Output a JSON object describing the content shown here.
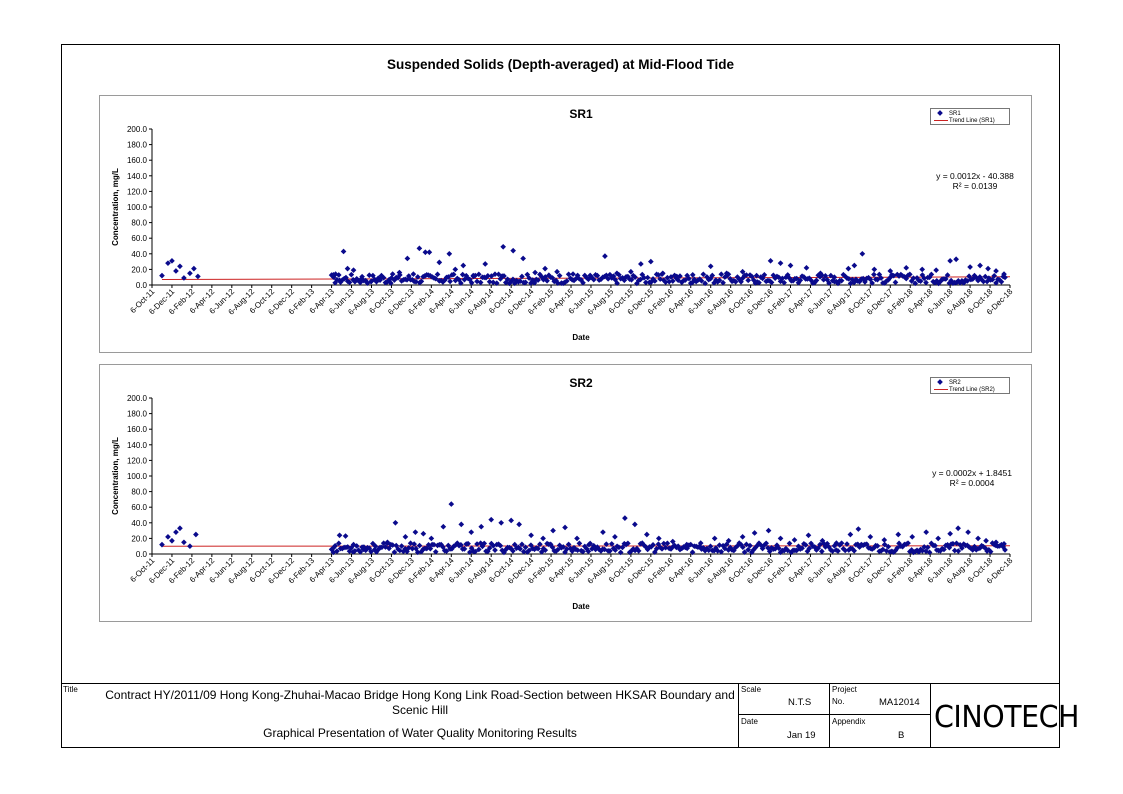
{
  "page_title": "Suspended Solids (Depth-averaged) at Mid-Flood Tide",
  "chart_data": [
    {
      "type": "scatter",
      "title": "SR1",
      "xlabel": "Date",
      "ylabel": "Concentration, mg/L",
      "ylim": [
        0,
        200
      ],
      "yticks": [
        "200.0",
        "180.0",
        "160.0",
        "140.0",
        "120.0",
        "100.0",
        "80.0",
        "60.0",
        "40.0",
        "20.0",
        "0.0"
      ],
      "xticks": [
        "6-Oct-11",
        "6-Dec-11",
        "6-Feb-12",
        "6-Apr-12",
        "6-Jun-12",
        "6-Aug-12",
        "6-Oct-12",
        "6-Dec-12",
        "6-Feb-13",
        "6-Apr-13",
        "6-Jun-13",
        "6-Aug-13",
        "6-Oct-13",
        "6-Dec-13",
        "6-Feb-14",
        "6-Apr-14",
        "6-Jun-14",
        "6-Aug-14",
        "6-Oct-14",
        "6-Dec-14",
        "6-Feb-15",
        "6-Apr-15",
        "6-Jun-15",
        "6-Aug-15",
        "6-Oct-15",
        "6-Dec-15",
        "6-Feb-16",
        "6-Apr-16",
        "6-Jun-16",
        "6-Aug-16",
        "6-Oct-16",
        "6-Dec-16",
        "6-Feb-17",
        "6-Apr-17",
        "6-Jun-17",
        "6-Aug-17",
        "6-Oct-17",
        "6-Dec-17",
        "6-Feb-18",
        "6-Apr-18",
        "6-Jun-18",
        "6-Aug-18",
        "6-Oct-18",
        "6-Dec-18"
      ],
      "legend": [
        "SR1",
        "Trend Line (SR1)"
      ],
      "legend_position": "top-right",
      "trend_equation": "y = 0.0012x - 40.388",
      "r_squared": "R² = 0.0139",
      "trend_line": {
        "start_y": 7.0,
        "end_y": 10.5
      },
      "series": [
        {
          "name": "SR1",
          "color": "#0a0a8c",
          "points": [
            [
              0.5,
              12
            ],
            [
              0.8,
              28
            ],
            [
              1.0,
              31
            ],
            [
              1.2,
              18
            ],
            [
              1.4,
              24
            ],
            [
              1.6,
              9
            ],
            [
              1.9,
              15
            ],
            [
              2.1,
              21
            ],
            [
              2.3,
              11
            ],
            [
              9.1,
              10
            ],
            [
              9.2,
              14
            ],
            [
              9.4,
              6
            ],
            [
              9.6,
              43
            ],
            [
              9.8,
              21
            ],
            [
              10.1,
              19
            ],
            [
              10.5,
              8
            ],
            [
              11.0,
              5
            ],
            [
              11.5,
              12
            ],
            [
              12.0,
              9
            ],
            [
              12.4,
              16
            ],
            [
              12.8,
              34
            ],
            [
              13.1,
              14
            ],
            [
              13.4,
              47
            ],
            [
              13.7,
              42
            ],
            [
              13.9,
              42
            ],
            [
              14.4,
              29
            ],
            [
              14.9,
              40
            ],
            [
              15.2,
              20
            ],
            [
              15.6,
              25
            ],
            [
              16.1,
              12
            ],
            [
              16.7,
              27
            ],
            [
              17.6,
              49
            ],
            [
              18.1,
              44
            ],
            [
              18.6,
              34
            ],
            [
              19.2,
              16
            ],
            [
              19.7,
              21
            ],
            [
              20.3,
              17
            ],
            [
              21.1,
              14
            ],
            [
              22.0,
              10
            ],
            [
              22.7,
              37
            ],
            [
              23.3,
              15
            ],
            [
              24.0,
              17
            ],
            [
              24.5,
              27
            ],
            [
              25.0,
              30
            ],
            [
              25.6,
              15
            ],
            [
              26.3,
              11
            ],
            [
              27.1,
              13
            ],
            [
              28.0,
              24
            ],
            [
              28.8,
              15
            ],
            [
              29.6,
              17
            ],
            [
              30.3,
              12
            ],
            [
              31.0,
              31
            ],
            [
              31.5,
              28
            ],
            [
              32.0,
              25
            ],
            [
              32.8,
              22
            ],
            [
              33.5,
              15
            ],
            [
              34.2,
              10
            ],
            [
              34.9,
              21
            ],
            [
              35.2,
              25
            ],
            [
              35.6,
              40
            ],
            [
              36.2,
              20
            ],
            [
              37.0,
              18
            ],
            [
              37.8,
              22
            ],
            [
              38.6,
              20
            ],
            [
              39.3,
              19
            ],
            [
              40.0,
              31
            ],
            [
              40.3,
              33
            ],
            [
              41.0,
              23
            ],
            [
              41.5,
              25
            ],
            [
              41.9,
              21
            ],
            [
              42.3,
              18
            ],
            [
              42.7,
              14
            ]
          ]
        }
      ]
    },
    {
      "type": "scatter",
      "title": "SR2",
      "xlabel": "Date",
      "ylabel": "Concentration, mg/L",
      "ylim": [
        0,
        200
      ],
      "yticks": [
        "200.0",
        "180.0",
        "160.0",
        "140.0",
        "120.0",
        "100.0",
        "80.0",
        "60.0",
        "40.0",
        "20.0",
        "0.0"
      ],
      "xticks": [
        "6-Oct-11",
        "6-Dec-11",
        "6-Feb-12",
        "6-Apr-12",
        "6-Jun-12",
        "6-Aug-12",
        "6-Oct-12",
        "6-Dec-12",
        "6-Feb-13",
        "6-Apr-13",
        "6-Jun-13",
        "6-Aug-13",
        "6-Oct-13",
        "6-Dec-13",
        "6-Feb-14",
        "6-Apr-14",
        "6-Jun-14",
        "6-Aug-14",
        "6-Oct-14",
        "6-Dec-14",
        "6-Feb-15",
        "6-Apr-15",
        "6-Jun-15",
        "6-Aug-15",
        "6-Oct-15",
        "6-Dec-15",
        "6-Feb-16",
        "6-Apr-16",
        "6-Jun-16",
        "6-Aug-16",
        "6-Oct-16",
        "6-Dec-16",
        "6-Feb-17",
        "6-Apr-17",
        "6-Jun-17",
        "6-Aug-17",
        "6-Oct-17",
        "6-Dec-17",
        "6-Feb-18",
        "6-Apr-18",
        "6-Jun-18",
        "6-Aug-18",
        "6-Oct-18",
        "6-Dec-18"
      ],
      "legend": [
        "SR2",
        "Trend Line (SR2)"
      ],
      "legend_position": "top-right",
      "trend_equation": "y = 0.0002x + 1.8451",
      "r_squared": "R² = 0.0004",
      "trend_line": {
        "start_y": 10.0,
        "end_y": 10.5
      },
      "series": [
        {
          "name": "SR2",
          "color": "#0a0a8c",
          "points": [
            [
              0.5,
              12
            ],
            [
              0.8,
              22
            ],
            [
              1.0,
              17
            ],
            [
              1.2,
              28
            ],
            [
              1.4,
              33
            ],
            [
              1.6,
              15
            ],
            [
              1.9,
              10
            ],
            [
              2.2,
              25
            ],
            [
              9.1,
              8
            ],
            [
              9.4,
              24
            ],
            [
              9.7,
              23
            ],
            [
              10.1,
              12
            ],
            [
              10.6,
              6
            ],
            [
              11.2,
              10
            ],
            [
              11.8,
              15
            ],
            [
              12.2,
              40
            ],
            [
              12.7,
              22
            ],
            [
              13.2,
              28
            ],
            [
              13.6,
              26
            ],
            [
              14.0,
              20
            ],
            [
              14.6,
              35
            ],
            [
              15.0,
              64
            ],
            [
              15.5,
              38
            ],
            [
              16.0,
              28
            ],
            [
              16.5,
              35
            ],
            [
              17.0,
              44
            ],
            [
              17.5,
              40
            ],
            [
              18.0,
              43
            ],
            [
              18.4,
              38
            ],
            [
              19.0,
              24
            ],
            [
              19.6,
              20
            ],
            [
              20.1,
              30
            ],
            [
              20.7,
              34
            ],
            [
              21.3,
              20
            ],
            [
              21.9,
              12
            ],
            [
              22.6,
              28
            ],
            [
              23.2,
              22
            ],
            [
              23.7,
              46
            ],
            [
              24.2,
              38
            ],
            [
              24.8,
              25
            ],
            [
              25.4,
              20
            ],
            [
              26.1,
              16
            ],
            [
              26.8,
              12
            ],
            [
              27.5,
              14
            ],
            [
              28.2,
              20
            ],
            [
              28.9,
              17
            ],
            [
              29.6,
              22
            ],
            [
              30.2,
              27
            ],
            [
              30.9,
              30
            ],
            [
              31.5,
              20
            ],
            [
              32.2,
              18
            ],
            [
              32.9,
              24
            ],
            [
              33.6,
              17
            ],
            [
              34.3,
              14
            ],
            [
              35.0,
              25
            ],
            [
              35.4,
              32
            ],
            [
              36.0,
              22
            ],
            [
              36.7,
              18
            ],
            [
              37.4,
              25
            ],
            [
              38.1,
              22
            ],
            [
              38.8,
              28
            ],
            [
              39.4,
              20
            ],
            [
              40.0,
              26
            ],
            [
              40.4,
              33
            ],
            [
              40.9,
              28
            ],
            [
              41.4,
              20
            ],
            [
              41.8,
              17
            ],
            [
              42.3,
              15
            ],
            [
              42.7,
              13
            ]
          ]
        }
      ]
    }
  ],
  "title_block": {
    "title_label": "Title",
    "contract_text": "Contract HY/2011/09 Hong Kong-Zhuhai-Macao Bridge Hong Kong Link Road-Section between HKSAR Boundary and Scenic Hill",
    "graph_text": "Graphical Presentation of Water Quality Monitoring Results",
    "scale_label": "Scale",
    "scale_value": "N.T.S",
    "project_label": "Project",
    "project_no_label": "No.",
    "project_no_value": "MA12014",
    "date_label": "Date",
    "date_value": "Jan 19",
    "appendix_label": "Appendix",
    "appendix_value": "B",
    "logo_text": "CINOTECH"
  }
}
